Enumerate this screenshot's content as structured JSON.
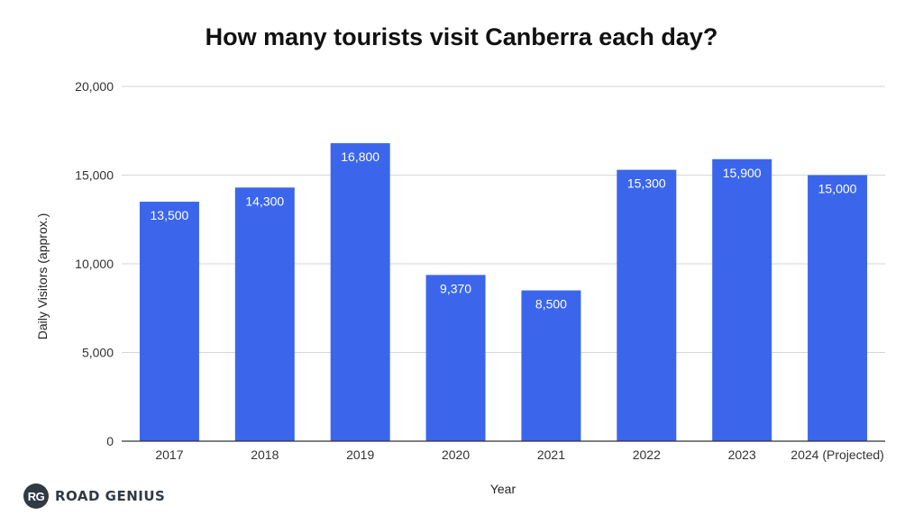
{
  "chart_data": {
    "type": "bar",
    "title": "How many tourists visit Canberra each day?",
    "xlabel": "Year",
    "ylabel": "Daily Visitors (approx.)",
    "categories": [
      "2017",
      "2018",
      "2019",
      "2020",
      "2021",
      "2022",
      "2023",
      "2024 (Projected)"
    ],
    "values": [
      13500,
      14300,
      16800,
      9370,
      8500,
      15300,
      15900,
      15000
    ],
    "value_labels": [
      "13,500",
      "14,300",
      "16,800",
      "9,370",
      "8,500",
      "15,300",
      "15,900",
      "15,000"
    ],
    "ylim": [
      0,
      20000
    ],
    "yticks": [
      0,
      5000,
      10000,
      15000,
      20000
    ],
    "ytick_labels": [
      "0",
      "5,000",
      "10,000",
      "15,000",
      "20,000"
    ],
    "grid": true,
    "legend": "none",
    "bar_color": "#3b66ec"
  },
  "brand": {
    "logo_text": "RG",
    "name": "ROAD GENIUS"
  }
}
